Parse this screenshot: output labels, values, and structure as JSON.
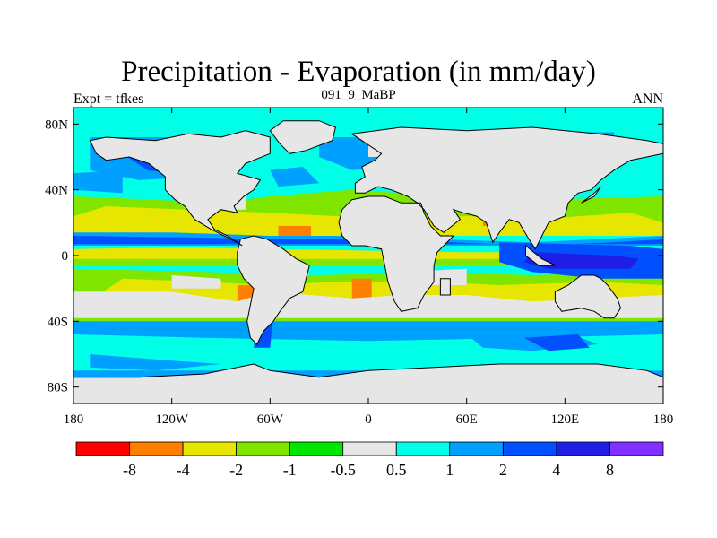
{
  "chart_data": {
    "type": "heatmap",
    "title": "Precipitation - Evaporation (in mm/day)",
    "subtitle": "091_9_MaBP",
    "left_label": "Expt = tfkes",
    "right_label": "ANN",
    "x_ticks": [
      "180",
      "120W",
      "60W",
      "0",
      "60E",
      "120E",
      "180"
    ],
    "x_values": [
      -180,
      -120,
      -60,
      0,
      60,
      120,
      180
    ],
    "y_ticks": [
      "80N",
      "40N",
      "0",
      "40S",
      "80S"
    ],
    "y_values": [
      80,
      40,
      0,
      -40,
      -80
    ],
    "xlim": [
      -180,
      180
    ],
    "ylim": [
      -90,
      90
    ],
    "colorbar": {
      "levels": [
        "-8",
        "-4",
        "-2",
        "-1",
        "-0.5",
        "0.5",
        "1",
        "2",
        "4",
        "8"
      ],
      "colors": [
        "#ff0000",
        "#ff8000",
        "#e6e600",
        "#80e600",
        "#00e600",
        "#e6e6e6",
        "#00ffe6",
        "#00a0ff",
        "#0050ff",
        "#1e1ee6",
        "#8030ff"
      ]
    }
  }
}
